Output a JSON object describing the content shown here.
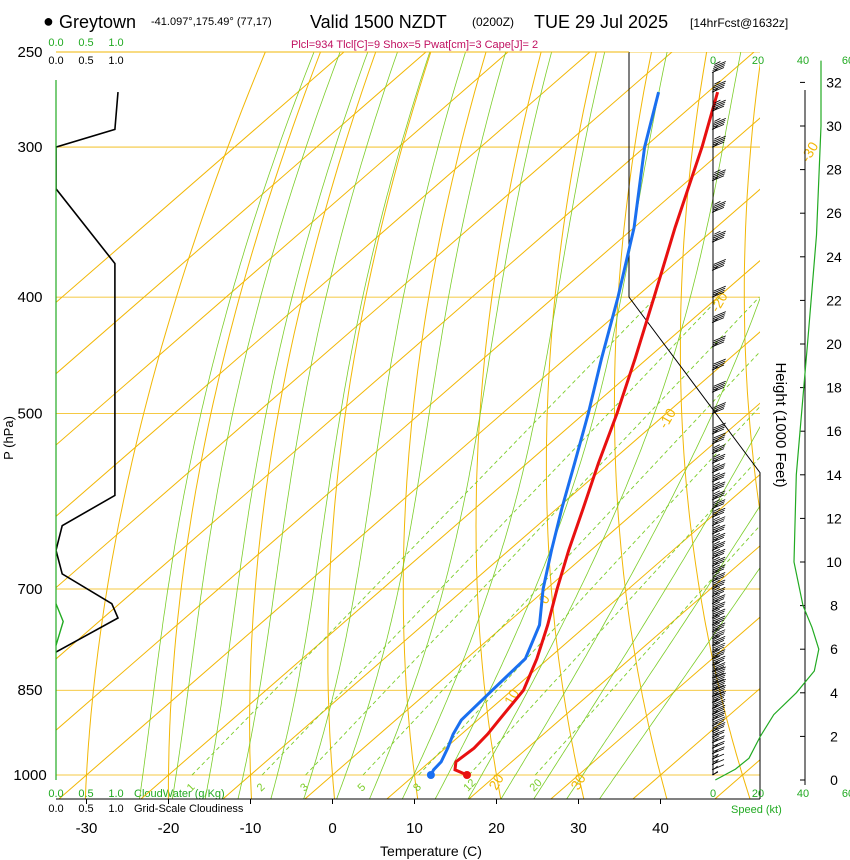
{
  "header": {
    "station": "Greytown",
    "coords": "-41.097°,175.49° (77,17)",
    "valid": "Valid 1500 NZDT",
    "utc": "(0200Z)",
    "date": "TUE 29 Jul 2025",
    "forecast": "[14hrFcst@1632z]",
    "indices": "Plcl=934 Tlcl[C]=9 Shox=5 Pwat[cm]=3 Cape[J]= 2"
  },
  "colors": {
    "temperature": "#e81010",
    "dewpoint": "#1a6ff0",
    "isotherm": "#f2b705",
    "dry_adiabat": "#f2b705",
    "moist_adiabat": "#7ccd2a",
    "mixing_ratio": "#7ccd2a",
    "cloud": "#000000",
    "cloudwater": "#22aa22",
    "wind": "#000000",
    "speed": "#22aa22"
  },
  "chart_data": {
    "type": "skew-t",
    "title": "Greytown Valid 1500 NZDT TUE 29 Jul 2025",
    "xlabel": "Temperature (C)",
    "ylabel": "P (hPa)",
    "y2label": "Height (1000 Feet)",
    "x_ticks": [
      -30,
      -20,
      -10,
      0,
      10,
      20,
      30,
      40
    ],
    "p_ticks": [
      250,
      300,
      400,
      500,
      700,
      850,
      1000
    ],
    "height_ticks": [
      0,
      2,
      4,
      6,
      8,
      10,
      12,
      14,
      16,
      18,
      20,
      22,
      24,
      26,
      28,
      30,
      32
    ],
    "isotherm_labels": [
      "-30",
      "-20",
      "-10",
      "0",
      "10",
      "20",
      "30"
    ],
    "isotherm_label_values": [
      -30,
      -20,
      -10,
      0,
      10,
      20,
      30
    ],
    "mixing_ratio_labels": [
      "1",
      "2",
      "3",
      "5",
      "8",
      "12",
      "20"
    ],
    "mixing_ratio_values": [
      1,
      2,
      3,
      5,
      8,
      12,
      20
    ],
    "cloud_scale_labels": [
      "0.0",
      "0.5",
      "1.0"
    ],
    "cloud_scale_values": [
      0,
      0.5,
      1.0
    ],
    "speed_scale_labels": [
      "0",
      "20",
      "40",
      "60"
    ],
    "speed_scale_values": [
      0,
      20,
      40,
      60
    ],
    "cloudwater_label": "CloudWater (g/Kg)",
    "cloudiness_label": "Grid-Scale Cloudiness",
    "speed_label": "Speed (kt)",
    "temperature_profile": [
      {
        "p": 1000,
        "t": 16.4
      },
      {
        "p": 990,
        "t": 14.2
      },
      {
        "p": 975,
        "t": 13.2
      },
      {
        "p": 950,
        "t": 13.5
      },
      {
        "p": 925,
        "t": 13.2
      },
      {
        "p": 900,
        "t": 12.6
      },
      {
        "p": 850,
        "t": 11.4
      },
      {
        "p": 800,
        "t": 8.6
      },
      {
        "p": 750,
        "t": 5.2
      },
      {
        "p": 700,
        "t": 1.3
      },
      {
        "p": 650,
        "t": -2.7
      },
      {
        "p": 600,
        "t": -6.8
      },
      {
        "p": 550,
        "t": -11.3
      },
      {
        "p": 500,
        "t": -16.0
      },
      {
        "p": 450,
        "t": -21.5
      },
      {
        "p": 400,
        "t": -27.8
      },
      {
        "p": 350,
        "t": -35.0
      },
      {
        "p": 300,
        "t": -43.0
      },
      {
        "p": 270,
        "t": -48.8
      }
    ],
    "dewpoint_profile": [
      {
        "p": 1000,
        "t": 12.0
      },
      {
        "p": 990,
        "t": 11.6
      },
      {
        "p": 975,
        "t": 11.4
      },
      {
        "p": 950,
        "t": 10.3
      },
      {
        "p": 925,
        "t": 9.0
      },
      {
        "p": 900,
        "t": 8.0
      },
      {
        "p": 850,
        "t": 7.6
      },
      {
        "p": 800,
        "t": 7.2
      },
      {
        "p": 750,
        "t": 4.2
      },
      {
        "p": 700,
        "t": -0.4
      },
      {
        "p": 650,
        "t": -4.8
      },
      {
        "p": 600,
        "t": -9.4
      },
      {
        "p": 550,
        "t": -14.2
      },
      {
        "p": 500,
        "t": -19.5
      },
      {
        "p": 450,
        "t": -25.6
      },
      {
        "p": 400,
        "t": -32.2
      },
      {
        "p": 350,
        "t": -40.0
      },
      {
        "p": 300,
        "t": -50.0
      },
      {
        "p": 270,
        "t": -56.0
      }
    ],
    "cloudiness_profile": [
      {
        "p": 270,
        "c": 1.0
      },
      {
        "p": 290,
        "c": 0.95
      },
      {
        "p": 300,
        "c": 0.0
      },
      {
        "p": 325,
        "c": 0.0
      },
      {
        "p": 375,
        "c": 0.95
      },
      {
        "p": 585,
        "c": 0.95
      },
      {
        "p": 620,
        "c": 0.1
      },
      {
        "p": 650,
        "c": 0.0
      },
      {
        "p": 680,
        "c": 0.1
      },
      {
        "p": 720,
        "c": 0.9
      },
      {
        "p": 740,
        "c": 1.0
      },
      {
        "p": 790,
        "c": 0.0
      }
    ],
    "cloudwater_profile": [
      {
        "p": 720,
        "q": 0.0
      },
      {
        "p": 745,
        "q": 0.12
      },
      {
        "p": 780,
        "q": 0.0
      }
    ],
    "speed_profile": [
      {
        "h": 0,
        "s": 1
      },
      {
        "h": 0.5,
        "s": 10
      },
      {
        "h": 1,
        "s": 16
      },
      {
        "h": 2,
        "s": 21
      },
      {
        "h": 3,
        "s": 27
      },
      {
        "h": 4,
        "s": 37
      },
      {
        "h": 5,
        "s": 45
      },
      {
        "h": 6,
        "s": 47
      },
      {
        "h": 7,
        "s": 44
      },
      {
        "h": 8,
        "s": 40
      },
      {
        "h": 10,
        "s": 36
      },
      {
        "h": 14,
        "s": 37
      },
      {
        "h": 20,
        "s": 42
      },
      {
        "h": 25,
        "s": 46
      },
      {
        "h": 30,
        "s": 48
      },
      {
        "h": 33,
        "s": 48
      }
    ],
    "wind_barbs": [
      {
        "p": 1000,
        "dir": 250,
        "spd": 8
      },
      {
        "p": 990,
        "dir": 250,
        "spd": 12
      },
      {
        "p": 980,
        "dir": 250,
        "spd": 15
      },
      {
        "p": 970,
        "dir": 250,
        "spd": 18
      },
      {
        "p": 960,
        "dir": 250,
        "spd": 20
      },
      {
        "p": 950,
        "dir": 250,
        "spd": 22
      },
      {
        "p": 940,
        "dir": 250,
        "spd": 25
      },
      {
        "p": 930,
        "dir": 250,
        "spd": 27
      },
      {
        "p": 920,
        "dir": 250,
        "spd": 30
      },
      {
        "p": 910,
        "dir": 250,
        "spd": 32
      },
      {
        "p": 900,
        "dir": 250,
        "spd": 35
      },
      {
        "p": 890,
        "dir": 250,
        "spd": 37
      },
      {
        "p": 880,
        "dir": 250,
        "spd": 38
      },
      {
        "p": 870,
        "dir": 250,
        "spd": 40
      },
      {
        "p": 860,
        "dir": 250,
        "spd": 40
      },
      {
        "p": 850,
        "dir": 250,
        "spd": 42
      },
      {
        "p": 840,
        "dir": 250,
        "spd": 40
      },
      {
        "p": 830,
        "dir": 250,
        "spd": 40
      },
      {
        "p": 820,
        "dir": 250,
        "spd": 38
      },
      {
        "p": 810,
        "dir": 250,
        "spd": 37
      },
      {
        "p": 800,
        "dir": 250,
        "spd": 35
      },
      {
        "p": 790,
        "dir": 250,
        "spd": 35
      },
      {
        "p": 780,
        "dir": 250,
        "spd": 35
      },
      {
        "p": 770,
        "dir": 250,
        "spd": 35
      },
      {
        "p": 760,
        "dir": 250,
        "spd": 35
      },
      {
        "p": 750,
        "dir": 250,
        "spd": 35
      },
      {
        "p": 740,
        "dir": 250,
        "spd": 35
      },
      {
        "p": 730,
        "dir": 250,
        "spd": 35
      },
      {
        "p": 720,
        "dir": 250,
        "spd": 35
      },
      {
        "p": 710,
        "dir": 250,
        "spd": 35
      },
      {
        "p": 700,
        "dir": 250,
        "spd": 35
      },
      {
        "p": 690,
        "dir": 250,
        "spd": 35
      },
      {
        "p": 680,
        "dir": 250,
        "spd": 35
      },
      {
        "p": 670,
        "dir": 250,
        "spd": 35
      },
      {
        "p": 660,
        "dir": 250,
        "spd": 35
      },
      {
        "p": 650,
        "dir": 250,
        "spd": 35
      },
      {
        "p": 640,
        "dir": 250,
        "spd": 35
      },
      {
        "p": 630,
        "dir": 250,
        "spd": 35
      },
      {
        "p": 620,
        "dir": 250,
        "spd": 35
      },
      {
        "p": 610,
        "dir": 250,
        "spd": 35
      },
      {
        "p": 600,
        "dir": 250,
        "spd": 37
      },
      {
        "p": 590,
        "dir": 250,
        "spd": 37
      },
      {
        "p": 580,
        "dir": 250,
        "spd": 38
      },
      {
        "p": 570,
        "dir": 250,
        "spd": 38
      },
      {
        "p": 560,
        "dir": 250,
        "spd": 38
      },
      {
        "p": 550,
        "dir": 250,
        "spd": 38
      },
      {
        "p": 540,
        "dir": 250,
        "spd": 38
      },
      {
        "p": 530,
        "dir": 250,
        "spd": 40
      },
      {
        "p": 520,
        "dir": 250,
        "spd": 40
      },
      {
        "p": 500,
        "dir": 250,
        "spd": 40
      },
      {
        "p": 480,
        "dir": 250,
        "spd": 40
      },
      {
        "p": 460,
        "dir": 250,
        "spd": 40
      },
      {
        "p": 440,
        "dir": 250,
        "spd": 40
      },
      {
        "p": 420,
        "dir": 250,
        "spd": 42
      },
      {
        "p": 400,
        "dir": 250,
        "spd": 42
      },
      {
        "p": 380,
        "dir": 250,
        "spd": 42
      },
      {
        "p": 360,
        "dir": 250,
        "spd": 45
      },
      {
        "p": 340,
        "dir": 250,
        "spd": 45
      },
      {
        "p": 320,
        "dir": 250,
        "spd": 45
      },
      {
        "p": 300,
        "dir": 250,
        "spd": 48
      },
      {
        "p": 290,
        "dir": 250,
        "spd": 48
      },
      {
        "p": 280,
        "dir": 250,
        "spd": 48
      },
      {
        "p": 270,
        "dir": 250,
        "spd": 48
      },
      {
        "p": 260,
        "dir": 250,
        "spd": 48
      }
    ]
  }
}
